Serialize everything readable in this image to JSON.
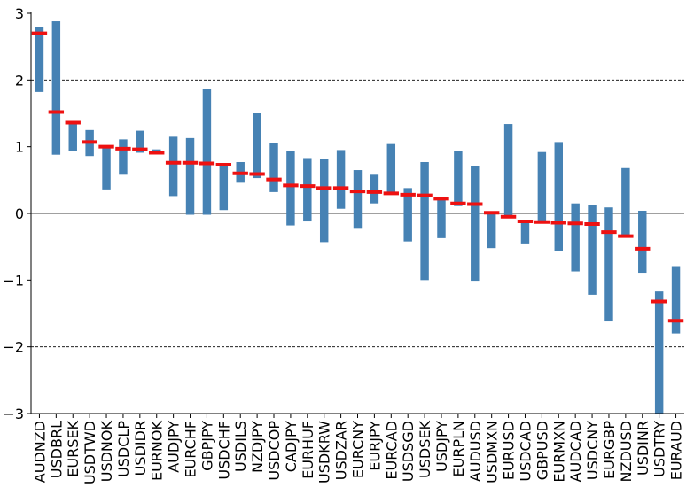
{
  "colors": {
    "bar": "#4682b4",
    "marker": "#ee1111",
    "axis": "#000000"
  },
  "chart_data": {
    "type": "bar",
    "title": "",
    "xlabel": "",
    "ylabel": "",
    "ylim": [
      -3,
      3
    ],
    "yticks": [
      -3,
      -2,
      -1,
      0,
      1,
      2,
      3
    ],
    "ytick_labels": [
      "−3",
      "−2",
      "−1",
      "0",
      "1",
      "2",
      "3"
    ],
    "grid": "dashed at y = -2 and 2, solid at y = 0",
    "categories": [
      "AUDNZD",
      "USDBRL",
      "EURSEK",
      "USDTWD",
      "USDNOK",
      "USDCLP",
      "USDIDR",
      "EURNOK",
      "AUDJPY",
      "EURCHF",
      "GBPJPY",
      "USDCHF",
      "USDILS",
      "NZDJPY",
      "USDCOP",
      "CADJPY",
      "EURHUF",
      "USDKRW",
      "USDZAR",
      "EURCNY",
      "EURJPY",
      "EURCAD",
      "USDSGD",
      "USDSEK",
      "USDJPY",
      "EURPLN",
      "AUDUSD",
      "USDMXN",
      "EURUSD",
      "USDCAD",
      "GBPUSD",
      "EURMXN",
      "AUDCAD",
      "USDCNY",
      "EURGBP",
      "NZDUSD",
      "USDINR",
      "USDTRY",
      "EURAUD"
    ],
    "series": [
      {
        "values_low": [
          1.82,
          0.88,
          0.93,
          0.86,
          0.36,
          0.58,
          0.91,
          0.91,
          0.26,
          -0.02,
          -0.02,
          0.05,
          0.46,
          0.53,
          0.32,
          -0.18,
          -0.12,
          -0.43,
          0.07,
          -0.23,
          0.15,
          0.3,
          -0.42,
          -1.0,
          -0.37,
          0.11,
          -1.01,
          -0.52,
          -0.05,
          -0.45,
          -0.14,
          -0.57,
          -0.87,
          -1.22,
          -1.62,
          -0.35,
          -0.89,
          -3.0,
          -1.8
        ],
        "values_high": [
          2.8,
          2.88,
          1.38,
          1.25,
          1.01,
          1.11,
          1.24,
          0.96,
          1.15,
          1.13,
          1.86,
          0.75,
          0.77,
          1.5,
          1.06,
          0.94,
          0.83,
          0.81,
          0.95,
          0.65,
          0.58,
          1.04,
          0.38,
          0.77,
          0.23,
          0.93,
          0.71,
          0.02,
          1.34,
          -0.12,
          0.92,
          1.07,
          0.15,
          0.12,
          0.09,
          0.68,
          0.04,
          -1.17,
          -0.79
        ]
      },
      {
        "values": [
          2.7,
          1.52,
          1.36,
          1.07,
          1.0,
          0.97,
          0.96,
          0.91,
          0.76,
          0.76,
          0.75,
          0.73,
          0.6,
          0.59,
          0.51,
          0.42,
          0.41,
          0.38,
          0.38,
          0.33,
          0.32,
          0.3,
          0.28,
          0.27,
          0.22,
          0.15,
          0.14,
          0.01,
          -0.05,
          -0.12,
          -0.13,
          -0.14,
          -0.15,
          -0.16,
          -0.28,
          -0.34,
          -0.53,
          -1.32,
          -1.61
        ]
      }
    ]
  }
}
